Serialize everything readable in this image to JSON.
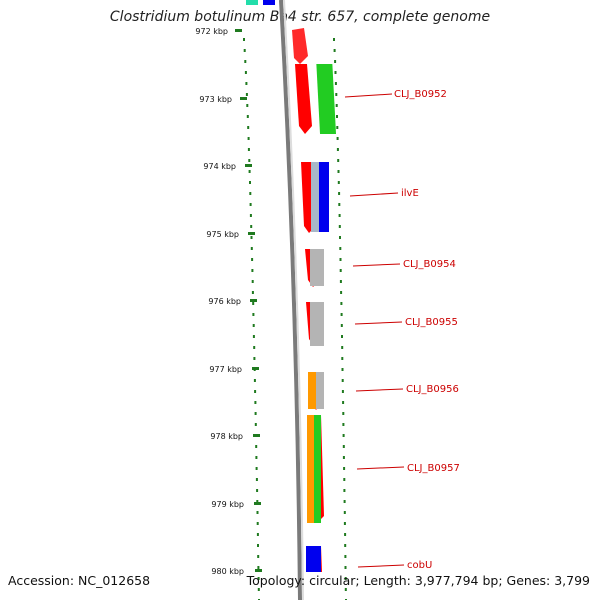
{
  "title": "Clostridium botulinum Ba4 str. 657, complete genome",
  "accession": "Accession: NC_012658",
  "topology": "Topology: circular; Length: 3,977,794 bp; Genes: 3,799",
  "ticks": [
    "972 kbp",
    "973 kbp",
    "974 kbp",
    "975 kbp",
    "976 kbp",
    "977 kbp",
    "978 kbp",
    "979 kbp",
    "980 kbp"
  ],
  "colors": {
    "forward_strand": "#ff0000",
    "backbone": "#7a7a7a",
    "tick": "#1f7a1f",
    "label": "#cc0000",
    "cog_green": "#22cc22",
    "cog_blue": "#0000ee",
    "cog_grey": "#b4b4b4",
    "cog_orange": "#ff9900",
    "cog_teal": "#22ddaa"
  },
  "genes": [
    {
      "label": "CLJ_B0952"
    },
    {
      "label": "ilvE"
    },
    {
      "label": "CLJ_B0954"
    },
    {
      "label": "CLJ_B0955"
    },
    {
      "label": "CLJ_B0956"
    },
    {
      "label": "CLJ_B0957"
    },
    {
      "label": "cobU"
    }
  ]
}
